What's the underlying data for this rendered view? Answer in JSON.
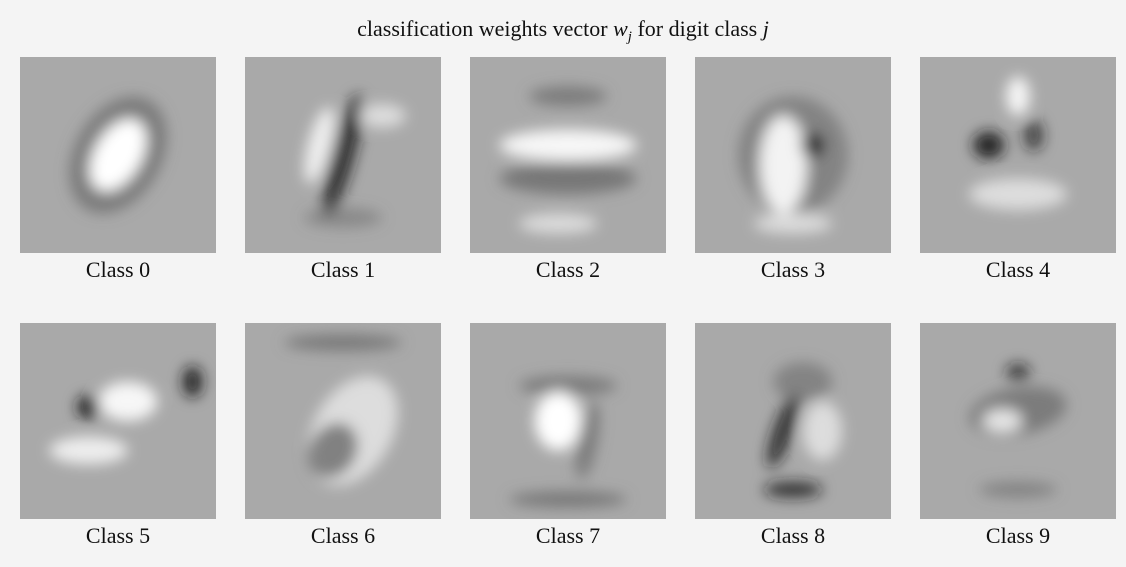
{
  "figure": {
    "title": {
      "lead": "classification weights vector",
      "symbol": "w",
      "subscript": "j",
      "middle": "for digit class",
      "symbol2": "j"
    },
    "panels": [
      {
        "label": "Class 0"
      },
      {
        "label": "Class 1"
      },
      {
        "label": "Class 2"
      },
      {
        "label": "Class 3"
      },
      {
        "label": "Class 4"
      },
      {
        "label": "Class 5"
      },
      {
        "label": "Class 6"
      },
      {
        "label": "Class 7"
      },
      {
        "label": "Class 8"
      },
      {
        "label": "Class 9"
      }
    ]
  }
}
